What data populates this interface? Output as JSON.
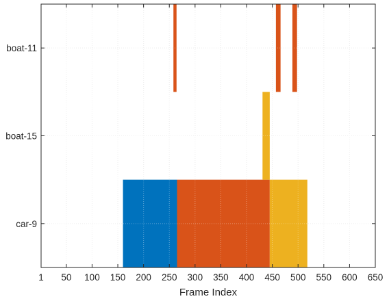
{
  "chart_data": {
    "type": "bar",
    "title": "",
    "xlabel": "Frame Index",
    "ylabel": "",
    "xlim": [
      1,
      650
    ],
    "x_ticks": [
      "1",
      "50",
      "100",
      "150",
      "200",
      "250",
      "300",
      "350",
      "400",
      "450",
      "500",
      "550",
      "600",
      "650"
    ],
    "y_categories": [
      "car-9",
      "boat-15",
      "boat-11"
    ],
    "y_tick_labels": [
      "car-9",
      "boat-15",
      "boat-11"
    ],
    "grid": true,
    "colors": {
      "blue": "#0072BD",
      "orange": "#D95319",
      "yellow": "#EDB120"
    },
    "segments": [
      {
        "start": 160,
        "end": 265,
        "ybottom": 0.5,
        "ytop": 1.5,
        "color": "#0072BD"
      },
      {
        "start": 265,
        "end": 445,
        "ybottom": 0.5,
        "ytop": 1.5,
        "color": "#D95319"
      },
      {
        "start": 445,
        "end": 518,
        "ybottom": 0.5,
        "ytop": 1.5,
        "color": "#EDB120"
      },
      {
        "start": 431,
        "end": 445,
        "ybottom": 1.5,
        "ytop": 2.5,
        "color": "#EDB120"
      },
      {
        "start": 258,
        "end": 264,
        "ybottom": 2.5,
        "ytop": 3.5,
        "color": "#D95319"
      },
      {
        "start": 457,
        "end": 466,
        "ybottom": 2.5,
        "ytop": 3.5,
        "color": "#D95319"
      },
      {
        "start": 489,
        "end": 498,
        "ybottom": 2.5,
        "ytop": 3.5,
        "color": "#D95319"
      }
    ]
  }
}
